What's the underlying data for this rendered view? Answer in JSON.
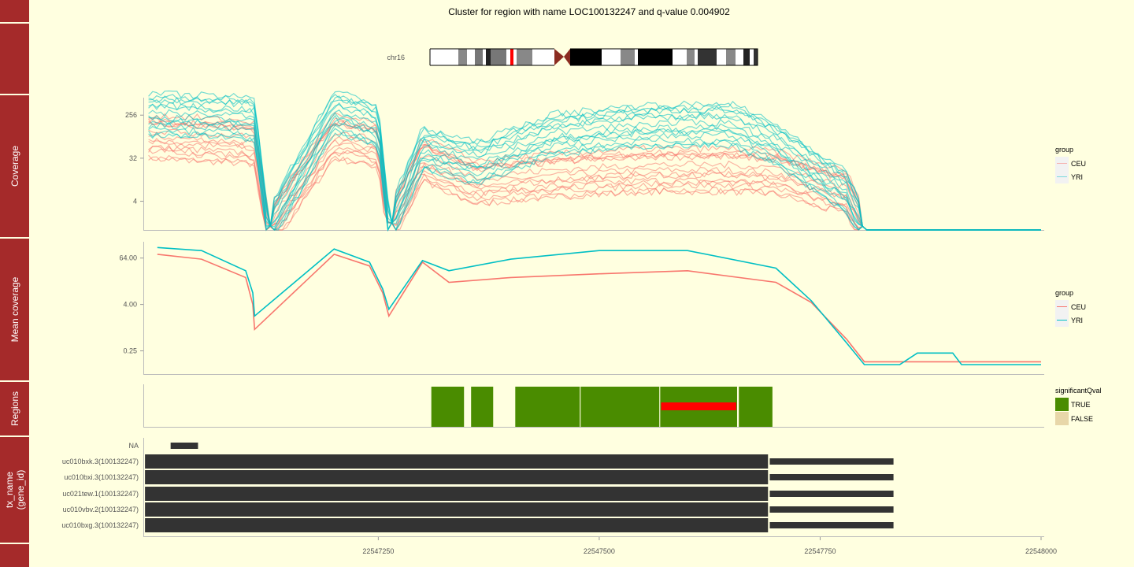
{
  "title": "Cluster for region with name LOC100132247 and q-value 0.004902",
  "strips": {
    "coverage": "Coverage",
    "mean": "Mean coverage",
    "regions": "Regions",
    "tx_line1": "tx_name",
    "tx_line2": "(gene_id)"
  },
  "ideogram": {
    "chrom": "chr16"
  },
  "colors": {
    "CEU": "#f8766d",
    "YRI": "#00bfc4",
    "TRUE": "#4a8c00",
    "FALSE": "#e8d7a9",
    "highlight": "#ff0000",
    "strip": "#a52a2a",
    "bg": "#ffffe0",
    "tx": "#333333"
  },
  "legends": {
    "coverage": {
      "title": "group",
      "items": [
        "CEU",
        "YRI"
      ]
    },
    "mean": {
      "title": "group",
      "items": [
        "CEU",
        "YRI"
      ]
    },
    "regions": {
      "title": "significantQval",
      "items": [
        "TRUE",
        "FALSE"
      ]
    }
  },
  "chart_data": [
    {
      "type": "line",
      "panel": "Coverage",
      "y_scale": "log2",
      "y_ticks": [
        "256",
        "32",
        "4"
      ],
      "x": [
        22547000,
        22547100,
        22547110,
        22547125,
        22547200,
        22547250,
        22547262,
        22547300,
        22547360,
        22547450,
        22547550,
        22547650,
        22547700,
        22547780,
        22547800,
        22547850,
        22547950,
        22548000
      ],
      "series": [
        {
          "name": "CEU",
          "values": [
            90,
            70,
            60,
            1,
            90,
            60,
            1,
            30,
            10,
            14,
            18,
            18,
            16,
            6,
            1,
            1,
            1,
            1
          ]
        },
        {
          "name": "YRI",
          "values": [
            260,
            220,
            200,
            1,
            300,
            150,
            1,
            50,
            25,
            100,
            150,
            160,
            60,
            6,
            1,
            1,
            1,
            1
          ]
        }
      ]
    },
    {
      "type": "line",
      "panel": "Mean coverage",
      "y_scale": "log2",
      "y_ticks": [
        "64.00",
        "4.00",
        "0.25"
      ],
      "x": [
        22547000,
        22547050,
        22547100,
        22547108,
        22547110,
        22547200,
        22547240,
        22547255,
        22547262,
        22547300,
        22547330,
        22547400,
        22547500,
        22547600,
        22547700,
        22547740,
        22547780,
        22547800,
        22547840,
        22547860,
        22547900,
        22547910,
        22547960,
        22547970,
        22548000
      ],
      "series": [
        {
          "name": "CEU",
          "values": [
            80,
            60,
            20,
            4,
            0.9,
            80,
            40,
            8,
            2,
            50,
            15,
            20,
            25,
            30,
            15,
            4.5,
            0.5,
            0.13,
            0.13,
            0.13,
            0.13,
            0.13,
            0.13,
            0.13,
            0.13
          ]
        },
        {
          "name": "YRI",
          "values": [
            120,
            100,
            30,
            8,
            2,
            110,
            50,
            10,
            3,
            55,
            30,
            60,
            100,
            100,
            35,
            5,
            0.4,
            0.11,
            0.11,
            0.22,
            0.22,
            0.11,
            0.11,
            0.11,
            0.11
          ]
        }
      ]
    },
    {
      "type": "bar",
      "panel": "Regions",
      "regions": [
        {
          "start": 22547310,
          "end": 22547347,
          "significantQval": "TRUE"
        },
        {
          "start": 22547355,
          "end": 22547380,
          "significantQval": "TRUE"
        },
        {
          "start": 22547405,
          "end": 22547478,
          "significantQval": "TRUE"
        },
        {
          "start": 22547479,
          "end": 22547568,
          "significantQval": "TRUE"
        },
        {
          "start": 22547569,
          "end": 22547656,
          "significantQval": "TRUE"
        },
        {
          "start": 22547658,
          "end": 22547696,
          "significantQval": "TRUE"
        }
      ],
      "highlight": {
        "start": 22547570,
        "end": 22547655
      }
    },
    {
      "type": "bar",
      "panel": "tx_name (gene_id)",
      "x_ticks": [
        "22547250",
        "22547500",
        "22547750",
        "22548000"
      ],
      "x_range": [
        22546985,
        22548000
      ],
      "transcripts": [
        {
          "name": "NA",
          "segments": [
            [
              22547015,
              22547046
            ]
          ]
        },
        {
          "name": "uc010bxk.3(100132247)",
          "segments": [
            [
              22546986,
              22547691
            ],
            [
              22547693,
              22547833
            ]
          ]
        },
        {
          "name": "uc010bxi.3(100132247)",
          "segments": [
            [
              22546986,
              22547691
            ],
            [
              22547693,
              22547833
            ]
          ]
        },
        {
          "name": "uc021tew.1(100132247)",
          "segments": [
            [
              22546986,
              22547691
            ],
            [
              22547693,
              22547833
            ]
          ]
        },
        {
          "name": "uc010vbv.2(100132247)",
          "segments": [
            [
              22546986,
              22547691
            ],
            [
              22547693,
              22547833
            ]
          ]
        },
        {
          "name": "uc010bxg.3(100132247)",
          "segments": [
            [
              22546986,
              22547691
            ],
            [
              22547693,
              22547833
            ]
          ]
        }
      ]
    }
  ]
}
